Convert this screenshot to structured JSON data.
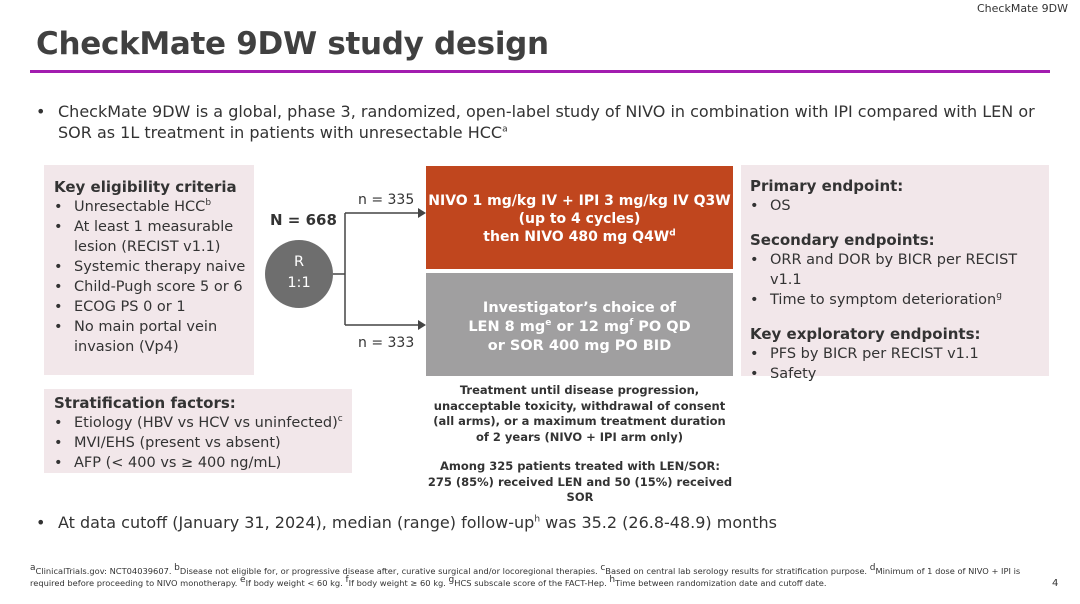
{
  "header_tag": "CheckMate 9DW",
  "title": "CheckMate 9DW study design",
  "intro": {
    "bullet": "•",
    "text": "CheckMate 9DW is a global, phase 3, randomized, open-label study of NIVO in combination with IPI compared with LEN or SOR as 1L treatment in patients with unresectable HCC",
    "sup": "a"
  },
  "eligibility": {
    "title": "Key eligibility criteria",
    "items": [
      {
        "text": "Unresectable HCC",
        "sup": "b"
      },
      {
        "text": "At least 1 measurable lesion (RECIST v1.1)",
        "sup": ""
      },
      {
        "text": "Systemic therapy naive",
        "sup": ""
      },
      {
        "text": "Child-Pugh score 5 or 6",
        "sup": ""
      },
      {
        "text": "ECOG PS 0 or 1",
        "sup": ""
      },
      {
        "text": "No main portal vein invasion (Vp4)",
        "sup": ""
      }
    ]
  },
  "stratification": {
    "title": "Stratification factors:",
    "items": [
      {
        "text": "Etiology (HBV vs HCV vs uninfected)",
        "sup": "c"
      },
      {
        "text": "MVI/EHS (present vs absent)",
        "sup": ""
      },
      {
        "text": "AFP (< 400 vs ≥ 400 ng/mL)",
        "sup": ""
      }
    ]
  },
  "randomization": {
    "n_total": "N = 668",
    "circle_line1": "R",
    "circle_line2": "1:1",
    "n_top": "n = 335",
    "n_bottom": "n = 333"
  },
  "arms": {
    "nivo": {
      "line1": "NIVO 1 mg/kg IV + IPI 3 mg/kg IV Q3W",
      "line2": "(up to 4 cycles)",
      "line3": "then NIVO 480 mg Q4W",
      "line3_sup": "d"
    },
    "investigator": {
      "line1": "Investigator’s choice of",
      "line2_a": "LEN 8 mg",
      "line2_sup1": "e",
      "line2_b": " or 12 mg",
      "line2_sup2": "f",
      "line2_c": " PO QD",
      "line3": "or SOR 400 mg PO BID"
    }
  },
  "treatment_note": "Treatment until disease progression, unacceptable toxicity, withdrawal of consent (all arms), or a maximum treatment duration of 2 years (NIVO + IPI arm only)",
  "among_note": {
    "line1": "Among 325 patients treated with LEN/SOR:",
    "line2": "275 (85%) received LEN and 50 (15%) received SOR"
  },
  "endpoints": {
    "primary": {
      "title": "Primary endpoint:",
      "items": [
        {
          "text": "OS",
          "sup": ""
        }
      ]
    },
    "secondary": {
      "title": "Secondary endpoints:",
      "items": [
        {
          "text": "ORR and DOR by BICR per RECIST v1.1",
          "sup": ""
        },
        {
          "text": "Time to symptom deterioration",
          "sup": "g"
        }
      ]
    },
    "exploratory": {
      "title": "Key exploratory endpoints:",
      "items": [
        {
          "text": "PFS by BICR per RECIST v1.1",
          "sup": ""
        },
        {
          "text": "Safety",
          "sup": ""
        }
      ]
    }
  },
  "cutoff": {
    "bullet": "•",
    "text_a": "At data cutoff (January 31, 2024), median (range) follow-up",
    "sup": "h",
    "text_b": " was 35.2 (26.8-48.9) months"
  },
  "footnotes": [
    {
      "sup": "a",
      "text": "ClinicalTrials.gov: NCT04039607. "
    },
    {
      "sup": "b",
      "text": "Disease not eligible for, or progressive disease after, curative surgical and/or locoregional therapies. "
    },
    {
      "sup": "c",
      "text": "Based on central lab serology results for stratification purpose. "
    },
    {
      "sup": "d",
      "text": "Minimum of 1 dose of NIVO + IPI is required before proceeding to NIVO monotherapy. "
    },
    {
      "sup": "e",
      "text": "If body weight < 60 kg. "
    },
    {
      "sup": "f",
      "text": "If body weight ≥ 60 kg. "
    },
    {
      "sup": "g",
      "text": "HCS subscale score of the FACT-Hep. "
    },
    {
      "sup": "h",
      "text": "Time between randomization date and cutoff date."
    }
  ],
  "page_number": "4",
  "bullet_char": "•",
  "colors": {
    "accent_rule": "#a21caf",
    "nivo_arm": "#c0461e",
    "investigator_arm": "#a09fa0",
    "panel_bg": "#f2e7ea",
    "randomization_circle": "#6e6e6e"
  }
}
